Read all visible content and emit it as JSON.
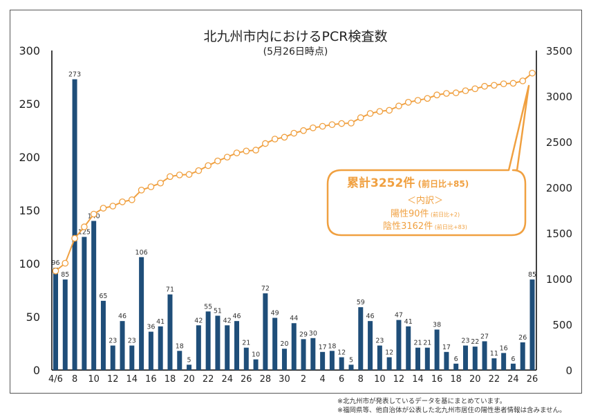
{
  "chart_data": {
    "type": "bar+line",
    "title": "北九州市内におけるPCR検査数",
    "subtitle": "(5月26日時点)",
    "x_tick_labels": [
      "4/6",
      "8",
      "10",
      "12",
      "14",
      "16",
      "18",
      "20",
      "22",
      "24",
      "26",
      "28",
      "30",
      "2",
      "4",
      "6",
      "8",
      "10",
      "12",
      "14",
      "16",
      "18",
      "20",
      "22",
      "24",
      "26"
    ],
    "bar_series": {
      "axis": "left",
      "color": "#1f4e79",
      "values": [
        96,
        85,
        273,
        125,
        140,
        65,
        23,
        46,
        23,
        106,
        36,
        41,
        71,
        18,
        5,
        42,
        55,
        51,
        42,
        46,
        21,
        10,
        72,
        49,
        20,
        44,
        29,
        30,
        17,
        18,
        12,
        5,
        59,
        46,
        23,
        12,
        47,
        41,
        21,
        21,
        38,
        17,
        6,
        23,
        22,
        27,
        11,
        16,
        6,
        26,
        85
      ]
    },
    "line_series": {
      "axis": "right",
      "color": "#f0a040",
      "values": [
        1085,
        1170,
        1443,
        1568,
        1708,
        1773,
        1796,
        1842,
        1865,
        1971,
        2007,
        2048,
        2119,
        2137,
        2142,
        2184,
        2239,
        2290,
        2332,
        2378,
        2399,
        2409,
        2481,
        2530,
        2550,
        2594,
        2623,
        2653,
        2670,
        2688,
        2700,
        2705,
        2764,
        2810,
        2833,
        2845,
        2892,
        2933,
        2954,
        2975,
        3013,
        3030,
        3036,
        3059,
        3081,
        3108,
        3119,
        3135,
        3141,
        3167,
        3252
      ]
    },
    "left_axis": {
      "ylim": [
        0,
        300
      ],
      "ticks": [
        "0",
        "50",
        "100",
        "150",
        "200",
        "250",
        "300"
      ]
    },
    "right_axis": {
      "ylim": [
        0,
        3500
      ],
      "ticks": [
        "0",
        "500",
        "1000",
        "1500",
        "2000",
        "2500",
        "3000",
        "3500"
      ]
    },
    "grid": false
  },
  "callout": {
    "total": "累計3252件",
    "total_diff": "(前日比+85)",
    "breakdown_heading": "＜内訳＞",
    "positive": "陽性90件",
    "positive_diff": "(前日比+2)",
    "negative": "陰性3162件",
    "negative_diff": "(前日比+83)",
    "color": "#f0a040"
  },
  "notes": [
    "※北九州市が発表しているデータを基にまとめています。",
    "※福岡県等、他自治体が公表した北九州市居住の陽性患者情報は含みません。"
  ]
}
